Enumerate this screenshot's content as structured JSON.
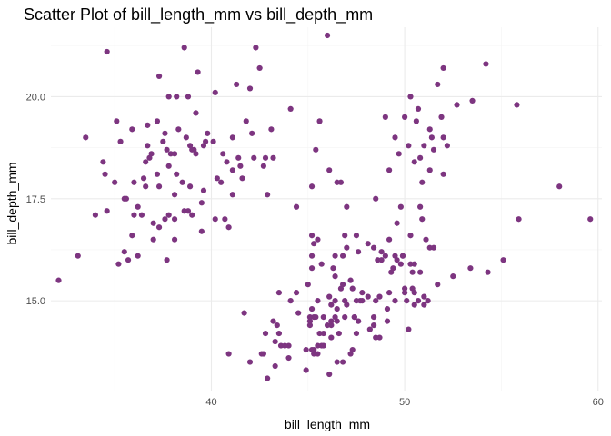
{
  "chart_data": {
    "type": "scatter",
    "title": "Scatter Plot of bill_length_mm vs bill_depth_mm",
    "xlabel": "bill_length_mm",
    "ylabel": "bill_depth_mm",
    "xlim": [
      31.7,
      60.2
    ],
    "ylim": [
      12.8,
      21.7
    ],
    "x_ticks": [
      40,
      50,
      60
    ],
    "x_tick_labels": [
      "40",
      "50",
      "60"
    ],
    "y_ticks": [
      15.0,
      17.5,
      20.0
    ],
    "y_tick_labels": [
      "15.0",
      "17.5",
      "20.0"
    ],
    "grid": true,
    "legend": "none",
    "point_color": "#7d3580",
    "series": [
      {
        "points": [
          [
            32.1,
            15.5
          ],
          [
            33.1,
            16.1
          ],
          [
            33.5,
            19.0
          ],
          [
            34.0,
            17.1
          ],
          [
            34.4,
            18.4
          ],
          [
            34.5,
            18.1
          ],
          [
            34.6,
            21.1
          ],
          [
            34.6,
            17.2
          ],
          [
            35.0,
            17.9
          ],
          [
            35.1,
            19.4
          ],
          [
            35.2,
            15.9
          ],
          [
            35.3,
            18.9
          ],
          [
            35.5,
            17.5
          ],
          [
            35.5,
            16.2
          ],
          [
            35.6,
            17.5
          ],
          [
            35.7,
            16.0
          ],
          [
            35.9,
            19.2
          ],
          [
            35.9,
            16.6
          ],
          [
            36.0,
            17.9
          ],
          [
            36.0,
            17.1
          ],
          [
            36.2,
            17.3
          ],
          [
            36.2,
            16.1
          ],
          [
            36.4,
            17.1
          ],
          [
            36.5,
            18.0
          ],
          [
            36.6,
            17.8
          ],
          [
            36.6,
            18.4
          ],
          [
            36.7,
            19.3
          ],
          [
            36.7,
            18.8
          ],
          [
            36.8,
            18.5
          ],
          [
            36.9,
            18.6
          ],
          [
            37.0,
            16.9
          ],
          [
            37.0,
            16.5
          ],
          [
            37.2,
            18.1
          ],
          [
            37.2,
            19.4
          ],
          [
            37.3,
            20.5
          ],
          [
            37.3,
            17.8
          ],
          [
            37.3,
            16.8
          ],
          [
            37.5,
            18.9
          ],
          [
            37.6,
            19.1
          ],
          [
            37.6,
            17.0
          ],
          [
            37.7,
            18.7
          ],
          [
            37.7,
            16.0
          ],
          [
            37.8,
            18.3
          ],
          [
            37.8,
            17.1
          ],
          [
            37.8,
            20.0
          ],
          [
            37.9,
            18.6
          ],
          [
            38.1,
            18.6
          ],
          [
            38.1,
            17.0
          ],
          [
            38.1,
            16.5
          ],
          [
            38.1,
            17.6
          ],
          [
            38.2,
            18.1
          ],
          [
            38.2,
            20.0
          ],
          [
            38.3,
            19.2
          ],
          [
            38.5,
            17.9
          ],
          [
            38.6,
            21.2
          ],
          [
            38.6,
            17.2
          ],
          [
            38.7,
            19.0
          ],
          [
            38.8,
            17.2
          ],
          [
            38.8,
            20.0
          ],
          [
            38.9,
            17.8
          ],
          [
            38.9,
            18.8
          ],
          [
            39.0,
            17.1
          ],
          [
            39.0,
            18.7
          ],
          [
            39.1,
            18.7
          ],
          [
            39.2,
            19.6
          ],
          [
            39.2,
            18.6
          ],
          [
            39.3,
            20.6
          ],
          [
            39.5,
            17.4
          ],
          [
            39.5,
            16.7
          ],
          [
            39.6,
            17.7
          ],
          [
            39.6,
            18.8
          ],
          [
            39.7,
            18.9
          ],
          [
            39.8,
            19.1
          ],
          [
            40.1,
            18.9
          ],
          [
            40.2,
            17.0
          ],
          [
            40.2,
            20.1
          ],
          [
            40.3,
            18.0
          ],
          [
            40.5,
            17.9
          ],
          [
            40.6,
            18.6
          ],
          [
            40.7,
            17.0
          ],
          [
            40.8,
            18.4
          ],
          [
            40.9,
            16.8
          ],
          [
            41.1,
            17.6
          ],
          [
            41.1,
            18.2
          ],
          [
            41.1,
            19.0
          ],
          [
            41.3,
            20.3
          ],
          [
            41.4,
            18.5
          ],
          [
            41.5,
            18.3
          ],
          [
            41.6,
            18.0
          ],
          [
            41.8,
            19.4
          ],
          [
            42.0,
            20.2
          ],
          [
            42.1,
            19.1
          ],
          [
            42.2,
            18.5
          ],
          [
            42.3,
            21.2
          ],
          [
            42.5,
            20.7
          ],
          [
            42.7,
            18.3
          ],
          [
            42.8,
            18.5
          ],
          [
            42.9,
            17.6
          ],
          [
            43.1,
            19.2
          ],
          [
            43.2,
            18.5
          ],
          [
            44.1,
            19.7
          ],
          [
            44.4,
            17.3
          ],
          [
            45.2,
            16.6
          ],
          [
            45.2,
            17.8
          ],
          [
            45.4,
            18.7
          ],
          [
            45.6,
            19.4
          ],
          [
            46.0,
            21.5
          ],
          [
            46.1,
            18.2
          ],
          [
            46.5,
            17.9
          ],
          [
            46.7,
            17.9
          ],
          [
            46.9,
            16.6
          ],
          [
            47.0,
            17.3
          ],
          [
            48.5,
            17.5
          ],
          [
            49.0,
            19.5
          ],
          [
            49.2,
            18.2
          ],
          [
            49.5,
            19.0
          ],
          [
            49.7,
            18.6
          ],
          [
            49.8,
            17.3
          ],
          [
            50.0,
            19.5
          ],
          [
            50.2,
            18.8
          ],
          [
            50.3,
            20.0
          ],
          [
            50.5,
            18.4
          ],
          [
            50.6,
            19.4
          ],
          [
            50.7,
            19.7
          ],
          [
            50.8,
            18.5
          ],
          [
            50.9,
            17.9
          ],
          [
            51.0,
            18.8
          ],
          [
            51.3,
            19.2
          ],
          [
            51.3,
            18.2
          ],
          [
            51.4,
            19.0
          ],
          [
            51.5,
            18.7
          ],
          [
            51.7,
            20.3
          ],
          [
            51.9,
            19.5
          ],
          [
            52.0,
            18.1
          ],
          [
            52.0,
            19.0
          ],
          [
            52.0,
            20.7
          ],
          [
            52.2,
            18.8
          ],
          [
            52.7,
            19.8
          ],
          [
            53.5,
            19.9
          ],
          [
            54.2,
            20.8
          ],
          [
            55.8,
            19.8
          ],
          [
            58.0,
            17.8
          ],
          [
            46.8,
            13.5
          ],
          [
            45.5,
            13.7
          ],
          [
            46.4,
            14.6
          ],
          [
            47.4,
            14.6
          ],
          [
            48.4,
            14.4
          ],
          [
            43.3,
            14.0
          ],
          [
            46.5,
            13.5
          ],
          [
            45.8,
            14.6
          ],
          [
            44.4,
            15.2
          ],
          [
            43.5,
            14.2
          ],
          [
            49.3,
            15.7
          ],
          [
            50.5,
            15.2
          ],
          [
            40.9,
            13.7
          ],
          [
            45.1,
            14.5
          ],
          [
            49.5,
            16.1
          ],
          [
            46.2,
            14.4
          ],
          [
            44.5,
            14.7
          ],
          [
            48.7,
            15.1
          ],
          [
            50.7,
            15.0
          ],
          [
            49.0,
            16.1
          ],
          [
            43.2,
            14.5
          ],
          [
            46.2,
            14.9
          ],
          [
            45.7,
            13.9
          ],
          [
            47.6,
            14.5
          ],
          [
            46.4,
            15.6
          ],
          [
            48.6,
            16.0
          ],
          [
            45.1,
            14.4
          ],
          [
            45.3,
            13.7
          ],
          [
            49.1,
            14.8
          ],
          [
            42.6,
            13.7
          ],
          [
            48.2,
            14.3
          ],
          [
            47.3,
            15.3
          ],
          [
            42.8,
            14.2
          ],
          [
            45.2,
            14.8
          ],
          [
            49.2,
            15.2
          ],
          [
            46.1,
            15.1
          ],
          [
            48.5,
            15.0
          ],
          [
            47.5,
            14.2
          ],
          [
            50.0,
            15.3
          ],
          [
            47.7,
            15.0
          ],
          [
            46.6,
            14.2
          ],
          [
            45.5,
            15.0
          ],
          [
            46.9,
            14.6
          ],
          [
            48.1,
            15.1
          ],
          [
            45.0,
            15.4
          ],
          [
            48.4,
            16.3
          ],
          [
            44.0,
            13.6
          ],
          [
            50.5,
            15.9
          ],
          [
            49.6,
            16.0
          ],
          [
            45.2,
            15.8
          ],
          [
            46.3,
            15.8
          ],
          [
            47.5,
            15.0
          ],
          [
            49.8,
            15.9
          ],
          [
            47.8,
            15.0
          ],
          [
            45.4,
            14.6
          ],
          [
            46.2,
            14.1
          ],
          [
            49.9,
            16.1
          ],
          [
            50.8,
            15.7
          ],
          [
            48.8,
            16.2
          ],
          [
            46.5,
            14.8
          ],
          [
            45.2,
            13.8
          ],
          [
            47.2,
            15.5
          ],
          [
            46.8,
            16.1
          ],
          [
            43.4,
            14.4
          ],
          [
            50.2,
            14.3
          ],
          [
            47.4,
            14.6
          ],
          [
            45.1,
            14.6
          ],
          [
            43.3,
            13.4
          ],
          [
            45.3,
            13.8
          ],
          [
            47.3,
            13.8
          ],
          [
            50.4,
            15.3
          ],
          [
            42.7,
            13.7
          ],
          [
            45.6,
            14.2
          ],
          [
            46.0,
            14.4
          ],
          [
            46.5,
            14.5
          ],
          [
            44.9,
            13.3
          ],
          [
            44.9,
            13.8
          ],
          [
            46.4,
            15.0
          ],
          [
            48.7,
            14.1
          ],
          [
            49.1,
            14.5
          ],
          [
            47.6,
            14.5
          ],
          [
            50.1,
            15.0
          ],
          [
            45.8,
            14.2
          ],
          [
            46.7,
            15.3
          ],
          [
            47.2,
            13.7
          ],
          [
            48.5,
            14.1
          ],
          [
            45.5,
            13.9
          ],
          [
            50.4,
            15.7
          ],
          [
            46.1,
            13.2
          ],
          [
            45.3,
            14.6
          ],
          [
            43.6,
            13.9
          ],
          [
            44.0,
            13.9
          ],
          [
            41.7,
            14.7
          ],
          [
            42.0,
            13.5
          ],
          [
            43.8,
            13.9
          ],
          [
            42.9,
            13.1
          ],
          [
            48.4,
            14.6
          ],
          [
            49.9,
            16.1
          ],
          [
            46.2,
            14.5
          ],
          [
            43.5,
            15.2
          ],
          [
            50.0,
            15.2
          ],
          [
            47.0,
            14.9
          ],
          [
            44.1,
            15.0
          ],
          [
            50.3,
            15.9
          ],
          [
            46.8,
            15.4
          ],
          [
            45.8,
            13.9
          ],
          [
            47.8,
            15.2
          ],
          [
            49.4,
            15.8
          ],
          [
            51.1,
            16.5
          ],
          [
            51.3,
            16.3
          ],
          [
            52.5,
            15.6
          ],
          [
            53.4,
            15.8
          ],
          [
            54.3,
            15.7
          ],
          [
            55.1,
            16.0
          ],
          [
            55.9,
            17.0
          ],
          [
            59.6,
            17.0
          ],
          [
            50.9,
            17.0
          ],
          [
            50.8,
            17.3
          ],
          [
            51.5,
            16.3
          ],
          [
            48.1,
            16.4
          ],
          [
            48.8,
            16.0
          ],
          [
            47.5,
            16.6
          ],
          [
            46.9,
            15.0
          ],
          [
            47.0,
            16.3
          ],
          [
            49.6,
            16.9
          ],
          [
            49.2,
            16.5
          ],
          [
            47.6,
            16.2
          ],
          [
            46.4,
            16.1
          ],
          [
            45.2,
            16.1
          ],
          [
            45.3,
            16.4
          ],
          [
            45.7,
            15.9
          ],
          [
            45.5,
            16.5
          ],
          [
            50.3,
            16.6
          ],
          [
            51.0,
            14.9
          ],
          [
            51.7,
            15.4
          ],
          [
            50.5,
            14.9
          ],
          [
            51.0,
            15.1
          ],
          [
            49.5,
            15.0
          ],
          [
            51.2,
            15.0
          ]
        ]
      }
    ]
  }
}
